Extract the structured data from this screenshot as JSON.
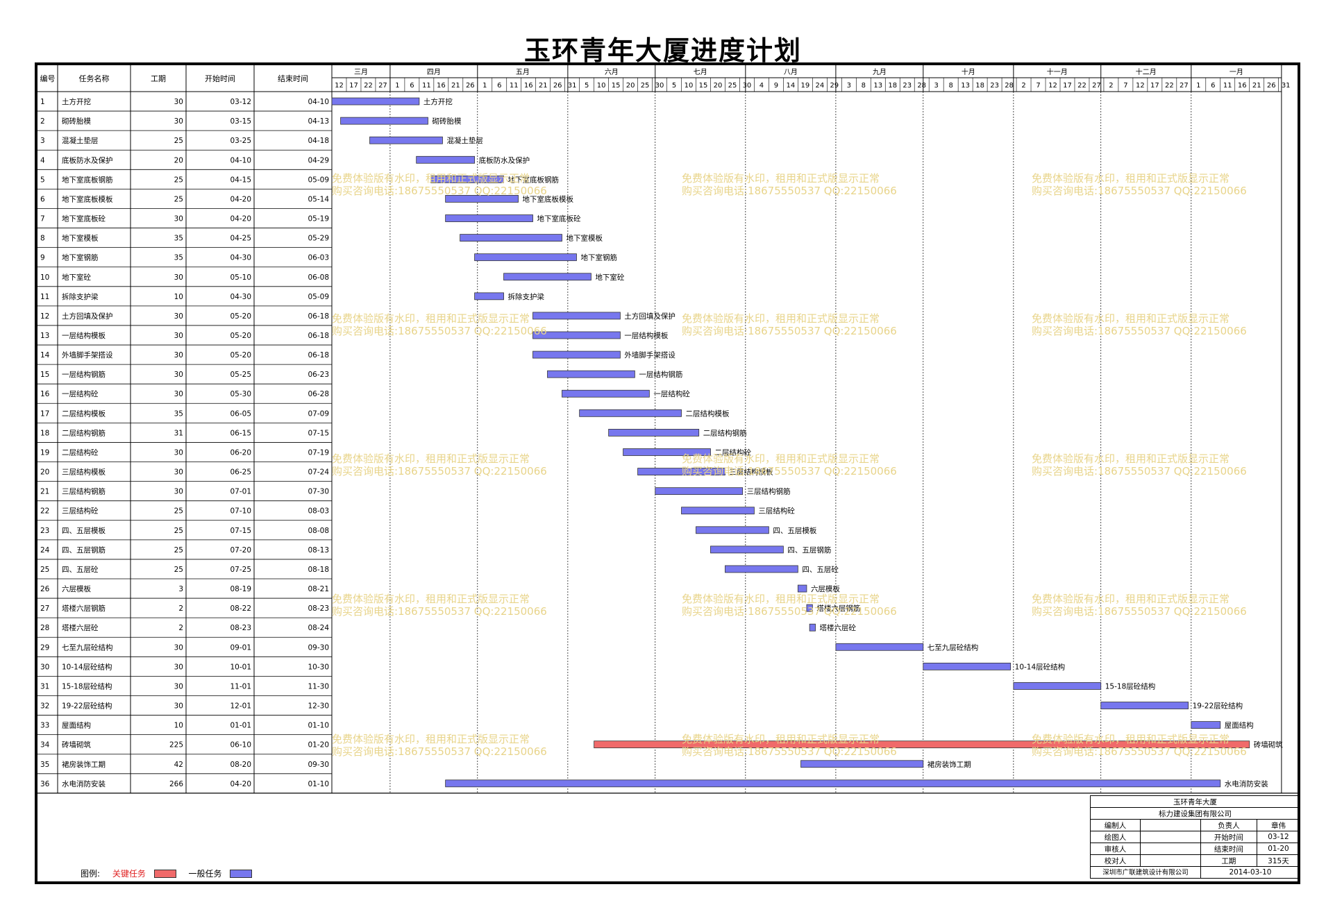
{
  "title": "玉环青年大厦进度计划",
  "chart_data": {
    "type": "gantt",
    "columns": [
      "编号",
      "任务名称",
      "工期",
      "开始时间",
      "结束时间"
    ],
    "colors": {
      "critical": "#f06a6a",
      "normal": "#7777ee",
      "critical_text": "#e02020"
    },
    "months": [
      {
        "name": "三月",
        "start": "2014-03-12",
        "days": 20
      },
      {
        "name": "四月",
        "start": "2014-04-01",
        "days": 30
      },
      {
        "name": "五月",
        "start": "2014-05-01",
        "days": 31
      },
      {
        "name": "六月",
        "start": "2014-06-01",
        "days": 30
      },
      {
        "name": "七月",
        "start": "2014-07-01",
        "days": 31
      },
      {
        "name": "八月",
        "start": "2014-08-01",
        "days": 31
      },
      {
        "name": "九月",
        "start": "2014-09-01",
        "days": 30
      },
      {
        "name": "十月",
        "start": "2014-10-01",
        "days": 31
      },
      {
        "name": "十一月",
        "start": "2014-11-01",
        "days": 30
      },
      {
        "name": "十二月",
        "start": "2014-12-01",
        "days": 31
      },
      {
        "name": "一月",
        "start": "2015-01-01",
        "days": 31
      }
    ],
    "day_ticks": [
      [
        "12",
        "17",
        "22",
        "27"
      ],
      [
        "1",
        "6",
        "11",
        "16",
        "21",
        "26"
      ],
      [
        "1",
        "6",
        "11",
        "16",
        "21",
        "26",
        "31"
      ],
      [
        "5",
        "10",
        "15",
        "20",
        "25",
        "30"
      ],
      [
        "5",
        "10",
        "15",
        "20",
        "25",
        "30"
      ],
      [
        "4",
        "9",
        "14",
        "19",
        "24",
        "29"
      ],
      [
        "3",
        "8",
        "13",
        "18",
        "23",
        "28"
      ],
      [
        "3",
        "8",
        "13",
        "18",
        "23",
        "28"
      ],
      [
        "2",
        "7",
        "12",
        "17",
        "22",
        "27"
      ],
      [
        "2",
        "7",
        "12",
        "17",
        "22",
        "27"
      ],
      [
        "1",
        "6",
        "11",
        "16",
        "21",
        "26",
        "31"
      ]
    ],
    "tasks": [
      {
        "id": "1",
        "name": "土方开挖",
        "dur": "30",
        "start": "03-12",
        "end": "04-10",
        "s": "2014-03-12",
        "e": "2014-04-10",
        "critical": false
      },
      {
        "id": "2",
        "name": "砌砖胎模",
        "dur": "30",
        "start": "03-15",
        "end": "04-13",
        "s": "2014-03-15",
        "e": "2014-04-13",
        "critical": false
      },
      {
        "id": "3",
        "name": "混凝土垫层",
        "dur": "25",
        "start": "03-25",
        "end": "04-18",
        "s": "2014-03-25",
        "e": "2014-04-18",
        "critical": false
      },
      {
        "id": "4",
        "name": "底板防水及保护",
        "dur": "20",
        "start": "04-10",
        "end": "04-29",
        "s": "2014-04-10",
        "e": "2014-04-29",
        "critical": false
      },
      {
        "id": "5",
        "name": "地下室底板钢筋",
        "dur": "25",
        "start": "04-15",
        "end": "05-09",
        "s": "2014-04-15",
        "e": "2014-05-09",
        "critical": false
      },
      {
        "id": "6",
        "name": "地下室底板模板",
        "dur": "25",
        "start": "04-20",
        "end": "05-14",
        "s": "2014-04-20",
        "e": "2014-05-14",
        "critical": false
      },
      {
        "id": "7",
        "name": "地下室底板砼",
        "dur": "30",
        "start": "04-20",
        "end": "05-19",
        "s": "2014-04-20",
        "e": "2014-05-19",
        "critical": false
      },
      {
        "id": "8",
        "name": "地下室模板",
        "dur": "35",
        "start": "04-25",
        "end": "05-29",
        "s": "2014-04-25",
        "e": "2014-05-29",
        "critical": false
      },
      {
        "id": "9",
        "name": "地下室钢筋",
        "dur": "35",
        "start": "04-30",
        "end": "06-03",
        "s": "2014-04-30",
        "e": "2014-06-03",
        "critical": false
      },
      {
        "id": "10",
        "name": "地下室砼",
        "dur": "30",
        "start": "05-10",
        "end": "06-08",
        "s": "2014-05-10",
        "e": "2014-06-08",
        "critical": false
      },
      {
        "id": "11",
        "name": "拆除支护梁",
        "dur": "10",
        "start": "04-30",
        "end": "05-09",
        "s": "2014-04-30",
        "e": "2014-05-09",
        "critical": false
      },
      {
        "id": "12",
        "name": "土方回填及保护",
        "dur": "30",
        "start": "05-20",
        "end": "06-18",
        "s": "2014-05-20",
        "e": "2014-06-18",
        "critical": false
      },
      {
        "id": "13",
        "name": "一层结构模板",
        "dur": "30",
        "start": "05-20",
        "end": "06-18",
        "s": "2014-05-20",
        "e": "2014-06-18",
        "critical": false
      },
      {
        "id": "14",
        "name": "外墙脚手架搭设",
        "dur": "30",
        "start": "05-20",
        "end": "06-18",
        "s": "2014-05-20",
        "e": "2014-06-18",
        "critical": false
      },
      {
        "id": "15",
        "name": "一层结构钢筋",
        "dur": "30",
        "start": "05-25",
        "end": "06-23",
        "s": "2014-05-25",
        "e": "2014-06-23",
        "critical": false
      },
      {
        "id": "16",
        "name": "一层结构砼",
        "dur": "30",
        "start": "05-30",
        "end": "06-28",
        "s": "2014-05-30",
        "e": "2014-06-28",
        "critical": false
      },
      {
        "id": "17",
        "name": "二层结构模板",
        "dur": "35",
        "start": "06-05",
        "end": "07-09",
        "s": "2014-06-05",
        "e": "2014-07-09",
        "critical": false
      },
      {
        "id": "18",
        "name": "二层结构钢筋",
        "dur": "31",
        "start": "06-15",
        "end": "07-15",
        "s": "2014-06-15",
        "e": "2014-07-15",
        "critical": false
      },
      {
        "id": "19",
        "name": "二层结构砼",
        "dur": "30",
        "start": "06-20",
        "end": "07-19",
        "s": "2014-06-20",
        "e": "2014-07-19",
        "critical": false
      },
      {
        "id": "20",
        "name": "三层结构模板",
        "dur": "30",
        "start": "06-25",
        "end": "07-24",
        "s": "2014-06-25",
        "e": "2014-07-24",
        "critical": false
      },
      {
        "id": "21",
        "name": "三层结构钢筋",
        "dur": "30",
        "start": "07-01",
        "end": "07-30",
        "s": "2014-07-01",
        "e": "2014-07-30",
        "critical": false
      },
      {
        "id": "22",
        "name": "三层结构砼",
        "dur": "25",
        "start": "07-10",
        "end": "08-03",
        "s": "2014-07-10",
        "e": "2014-08-03",
        "critical": false
      },
      {
        "id": "23",
        "name": "四、五层模板",
        "dur": "25",
        "start": "07-15",
        "end": "08-08",
        "s": "2014-07-15",
        "e": "2014-08-08",
        "critical": false
      },
      {
        "id": "24",
        "name": "四、五层钢筋",
        "dur": "25",
        "start": "07-20",
        "end": "08-13",
        "s": "2014-07-20",
        "e": "2014-08-13",
        "critical": false
      },
      {
        "id": "25",
        "name": "四、五层砼",
        "dur": "25",
        "start": "07-25",
        "end": "08-18",
        "s": "2014-07-25",
        "e": "2014-08-18",
        "critical": false
      },
      {
        "id": "26",
        "name": "六层模板",
        "dur": "3",
        "start": "08-19",
        "end": "08-21",
        "s": "2014-08-19",
        "e": "2014-08-21",
        "critical": false
      },
      {
        "id": "27",
        "name": "塔楼六层钢筋",
        "dur": "2",
        "start": "08-22",
        "end": "08-23",
        "s": "2014-08-22",
        "e": "2014-08-23",
        "critical": false
      },
      {
        "id": "28",
        "name": "塔楼六层砼",
        "dur": "2",
        "start": "08-23",
        "end": "08-24",
        "s": "2014-08-23",
        "e": "2014-08-24",
        "critical": false
      },
      {
        "id": "29",
        "name": "七至九层砼结构",
        "dur": "30",
        "start": "09-01",
        "end": "09-30",
        "s": "2014-09-01",
        "e": "2014-09-30",
        "critical": false
      },
      {
        "id": "30",
        "name": "10-14层砼结构",
        "dur": "30",
        "start": "10-01",
        "end": "10-30",
        "s": "2014-10-01",
        "e": "2014-10-30",
        "critical": false
      },
      {
        "id": "31",
        "name": "15-18层砼结构",
        "dur": "30",
        "start": "11-01",
        "end": "11-30",
        "s": "2014-11-01",
        "e": "2014-11-30",
        "critical": false
      },
      {
        "id": "32",
        "name": "19-22层砼结构",
        "dur": "30",
        "start": "12-01",
        "end": "12-30",
        "s": "2014-12-01",
        "e": "2014-12-30",
        "critical": false
      },
      {
        "id": "33",
        "name": "屋面结构",
        "dur": "10",
        "start": "01-01",
        "end": "01-10",
        "s": "2015-01-01",
        "e": "2015-01-10",
        "critical": false
      },
      {
        "id": "34",
        "name": "砖墙砌筑",
        "dur": "225",
        "start": "06-10",
        "end": "01-20",
        "s": "2014-06-10",
        "e": "2015-01-20",
        "critical": true
      },
      {
        "id": "35",
        "name": "裙房装饰工期",
        "dur": "42",
        "start": "08-20",
        "end": "09-30",
        "s": "2014-08-20",
        "e": "2014-09-30",
        "critical": false
      },
      {
        "id": "36",
        "name": "水电消防安装",
        "dur": "266",
        "start": "04-20",
        "end": "01-10",
        "s": "2014-04-20",
        "e": "2015-01-10",
        "critical": false
      }
    ]
  },
  "watermark": {
    "line1": "免费体验版有水印，租用和正式版显示正常",
    "line2": "购买咨询电话:18675550537 QQ:22150066"
  },
  "legend": {
    "label": "图例:",
    "critical": "关键任务",
    "normal": "一般任务"
  },
  "title_block": {
    "project": "玉环青年大厦",
    "company": "标力建设集团有限公司",
    "compiler_label": "编制人",
    "compiler": "",
    "leader_label": "负责人",
    "leader": "章伟",
    "drafter_label": "绘图人",
    "drafter": "",
    "start_label": "开始时间",
    "start": "03-12",
    "reviewer_label": "审核人",
    "reviewer": "",
    "end_label": "结束时间",
    "end": "01-20",
    "checker_label": "校对人",
    "checker": "",
    "dur_label": "工期",
    "dur": "315天",
    "designer": "深圳市广联建筑设计有限公司",
    "date": "2014-03-10"
  }
}
